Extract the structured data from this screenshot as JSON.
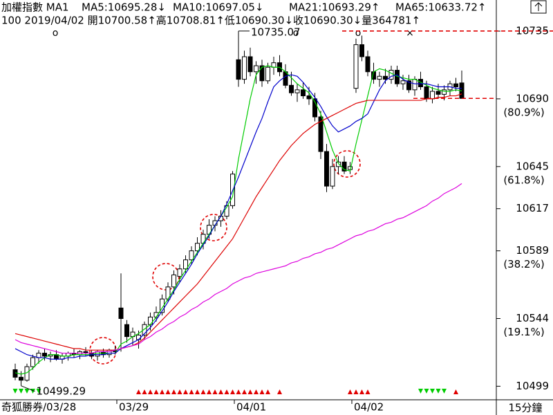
{
  "chart_data": {
    "type": "candlestick",
    "title": "加權指數 MA1",
    "info_line": "100 2019/04/02 開10700.58↑高10708.81↑低10690.30↓收10690.30↓量364781↑",
    "interval_label": "15分鐘",
    "top_markers": [
      "o",
      "o",
      "o",
      "×"
    ],
    "categories": [
      "奇狐勝券/03/28",
      null,
      null,
      null,
      null,
      null,
      null,
      null,
      null,
      null,
      null,
      null,
      null,
      null,
      null,
      null,
      null,
      null,
      "03/29",
      null,
      null,
      null,
      null,
      null,
      null,
      null,
      null,
      null,
      null,
      null,
      null,
      null,
      null,
      null,
      null,
      null,
      null,
      null,
      "04/01",
      null,
      null,
      null,
      null,
      null,
      null,
      null,
      null,
      null,
      null,
      null,
      null,
      null,
      null,
      null,
      null,
      null,
      null,
      null,
      "04/02",
      null,
      null,
      null,
      null,
      null,
      null,
      null,
      null,
      null,
      null,
      null,
      null,
      null,
      null,
      null,
      null,
      null,
      null
    ],
    "open": [
      10510,
      10505,
      10503,
      10512,
      10518,
      10521,
      10519,
      10520,
      10517,
      10519,
      10521,
      10520,
      10522,
      10521,
      10519,
      10522,
      10520,
      10523,
      10551,
      10540,
      10532,
      10530,
      10533,
      10540,
      10545,
      10548,
      10557,
      10565,
      10572,
      10577,
      10583,
      10589,
      10594,
      10600,
      10606,
      10609,
      10612,
      10619,
      10716,
      10703,
      10718,
      10708,
      10712,
      10702,
      10711,
      10714,
      10708,
      10699,
      10694,
      10696,
      10692,
      10690,
      10678,
      10655,
      10632,
      10645,
      10648,
      10643,
      10697,
      10726,
      10718,
      10708,
      10703,
      10705,
      10703,
      10709,
      10700,
      10702,
      10696,
      10703,
      10698,
      10690,
      10695,
      10693,
      10696,
      10700,
      10700.58
    ],
    "high": [
      10514,
      10509,
      10514,
      10520,
      10523,
      10524,
      10522,
      10523,
      10521,
      10522,
      10524,
      10523,
      10525,
      10523,
      10523,
      10524,
      10524,
      10526,
      10574,
      10543,
      10538,
      10536,
      10542,
      10548,
      10552,
      10560,
      10568,
      10576,
      10580,
      10586,
      10592,
      10598,
      10603,
      10610,
      10612,
      10616,
      10622,
      10642,
      10735.07,
      10722,
      10724,
      10715,
      10716,
      10714,
      10718,
      10719,
      10713,
      10708,
      10700,
      10701,
      10698,
      10694,
      10682,
      10660,
      10650,
      10652,
      10652,
      10648,
      10730,
      10732,
      10722,
      10714,
      10708,
      10710,
      10712,
      10712,
      10706,
      10706,
      10705,
      10708,
      10702,
      10698,
      10700,
      10699,
      10702,
      10704,
      10708.81
    ],
    "low": [
      10503,
      10499.29,
      10502,
      10510,
      10514,
      10516,
      10515,
      10516,
      10514,
      10516,
      10518,
      10517,
      10519,
      10517,
      10516,
      10518,
      10518,
      10520,
      10522,
      10528,
      10526,
      10524,
      10530,
      10536,
      10542,
      10546,
      10555,
      10560,
      10568,
      10574,
      10580,
      10586,
      10590,
      10597,
      10602,
      10605,
      10610,
      10617,
      10698,
      10700,
      10705,
      10700,
      10698,
      10700,
      10706,
      10705,
      10697,
      10692,
      10688,
      10690,
      10686,
      10675,
      10650,
      10628,
      10630,
      10640,
      10640,
      10640,
      10694,
      10715,
      10705,
      10700,
      10698,
      10700,
      10700,
      10698,
      10696,
      10694,
      10692,
      10696,
      10688,
      10687,
      10690,
      10689,
      10692,
      10695,
      10690.3
    ],
    "close": [
      10505,
      10503,
      10512,
      10518,
      10521,
      10519,
      10520,
      10517,
      10519,
      10521,
      10520,
      10522,
      10521,
      10519,
      10522,
      10520,
      10523,
      10522,
      10544,
      10532,
      10535,
      10533,
      10540,
      10545,
      10548,
      10557,
      10565,
      10573,
      10577,
      10583,
      10589,
      10594,
      10600,
      10606,
      10609,
      10612,
      10619,
      10640,
      10703,
      10718,
      10708,
      10712,
      10702,
      10711,
      10714,
      10708,
      10699,
      10694,
      10696,
      10692,
      10690,
      10678,
      10655,
      10632,
      10645,
      10648,
      10642,
      10645,
      10726,
      10718,
      10708,
      10703,
      10705,
      10703,
      10709,
      10700,
      10702,
      10696,
      10703,
      10698,
      10690,
      10695,
      10693,
      10696,
      10700,
      10698,
      10690.3
    ],
    "series": [
      {
        "name": "MA5:10695.28↓",
        "color": "#00cc00",
        "values": [
          10508,
          10507,
          10508,
          10511,
          10515,
          10518,
          10520,
          10520,
          10519,
          10519,
          10520,
          10520,
          10520,
          10520,
          10521,
          10521,
          10521,
          10521,
          10527,
          10529,
          10532,
          10534,
          10537,
          10540,
          10545,
          10551,
          10557,
          10563,
          10570,
          10576,
          10582,
          10588,
          10594,
          10600,
          10606,
          10612,
          10618,
          10625,
          10650,
          10670,
          10690,
          10706,
          10711,
          10712,
          10711,
          10711,
          10708,
          10704,
          10700,
          10697,
          10694,
          10688,
          10680,
          10668,
          10656,
          10647,
          10643,
          10642,
          10660,
          10676,
          10692,
          10708,
          10710,
          10709,
          10707,
          10705,
          10704,
          10703,
          10703,
          10701,
          10699,
          10697,
          10696,
          10695,
          10695,
          10696,
          10695.28
        ]
      },
      {
        "name": "MA10:10697.05↓",
        "color": "#0000cc",
        "values": [
          10524,
          10522,
          10520,
          10519,
          10518,
          10518,
          10517,
          10517,
          10517,
          10518,
          10518,
          10519,
          10519,
          10520,
          10520,
          10520,
          10521,
          10521,
          10524,
          10526,
          10528,
          10530,
          10534,
          10538,
          10543,
          10549,
          10555,
          10562,
          10568,
          10574,
          10580,
          10587,
          10593,
          10599,
          10606,
          10612,
          10620,
          10629,
          10638,
          10648,
          10658,
          10668,
          10677,
          10688,
          10698,
          10702,
          10705,
          10706,
          10705,
          10701,
          10696,
          10691,
          10685,
          10678,
          10672,
          10668,
          10670,
          10672,
          10675,
          10677,
          10680,
          10688,
          10696,
          10702,
          10705,
          10706,
          10703,
          10701,
          10700,
          10700,
          10700,
          10699,
          10698,
          10698,
          10698,
          10697,
          10697.05
        ]
      },
      {
        "name": "MA21:10693.29↑",
        "color": "#dd0000",
        "values": [
          10534,
          10533,
          10532,
          10531,
          10530,
          10529,
          10528,
          10527,
          10526,
          10525,
          10524,
          10524,
          10523,
          10523,
          10523,
          10523,
          10523,
          10523,
          10524,
          10525,
          10526,
          10528,
          10531,
          10535,
          10539,
          10543,
          10547,
          10551,
          10555,
          10559,
          10563,
          10567,
          10572,
          10577,
          10582,
          10587,
          10592,
          10597,
          10604,
          10611,
          10618,
          10625,
          10631,
          10637,
          10643,
          10649,
          10654,
          10659,
          10663,
          10667,
          10670,
          10673,
          10675,
          10677,
          10679,
          10681,
          10683,
          10685,
          10687,
          10688,
          10689,
          10689,
          10689,
          10689,
          10689,
          10689,
          10689,
          10689,
          10689,
          10689,
          10690,
          10690,
          10691,
          10691,
          10692,
          10692,
          10693.29
        ]
      },
      {
        "name": "MA65:10633.72↑",
        "color": "#dd00dd",
        "values": [
          10530,
          10528,
          10527,
          10526,
          10525,
          10524,
          10523,
          10522,
          10521,
          10521,
          10521,
          10521,
          10521,
          10521,
          10522,
          10522,
          10522,
          10523,
          10524,
          10525,
          10526,
          10527,
          10530,
          10532,
          10535,
          10537,
          10540,
          10542,
          10545,
          10547,
          10550,
          10552,
          10555,
          10557,
          10560,
          10562,
          10564,
          10567,
          10569,
          10571,
          10572,
          10574,
          10575,
          10576,
          10577,
          10578,
          10579,
          10581,
          10582,
          10584,
          10585,
          10587,
          10588,
          10590,
          10591,
          10593,
          10595,
          10597,
          10599,
          10600,
          10602,
          10603,
          10605,
          10607,
          10608,
          10610,
          10611,
          10613,
          10615,
          10617,
          10619,
          10622,
          10624,
          10627,
          10629,
          10631,
          10633.72
        ]
      }
    ],
    "ylim": [
      10490,
      10737.3
    ],
    "yticks": [
      10735,
      10690,
      10645,
      10617,
      10589,
      10544,
      10499
    ],
    "level_ratios": [
      {
        "value": 10690,
        "label": "(80.9%)"
      },
      {
        "value": 10645,
        "label": "(61.8%)"
      },
      {
        "value": 10589,
        "label": "(38.2%)"
      },
      {
        "value": 10544,
        "label": "(19.1%)"
      }
    ]
  }
}
